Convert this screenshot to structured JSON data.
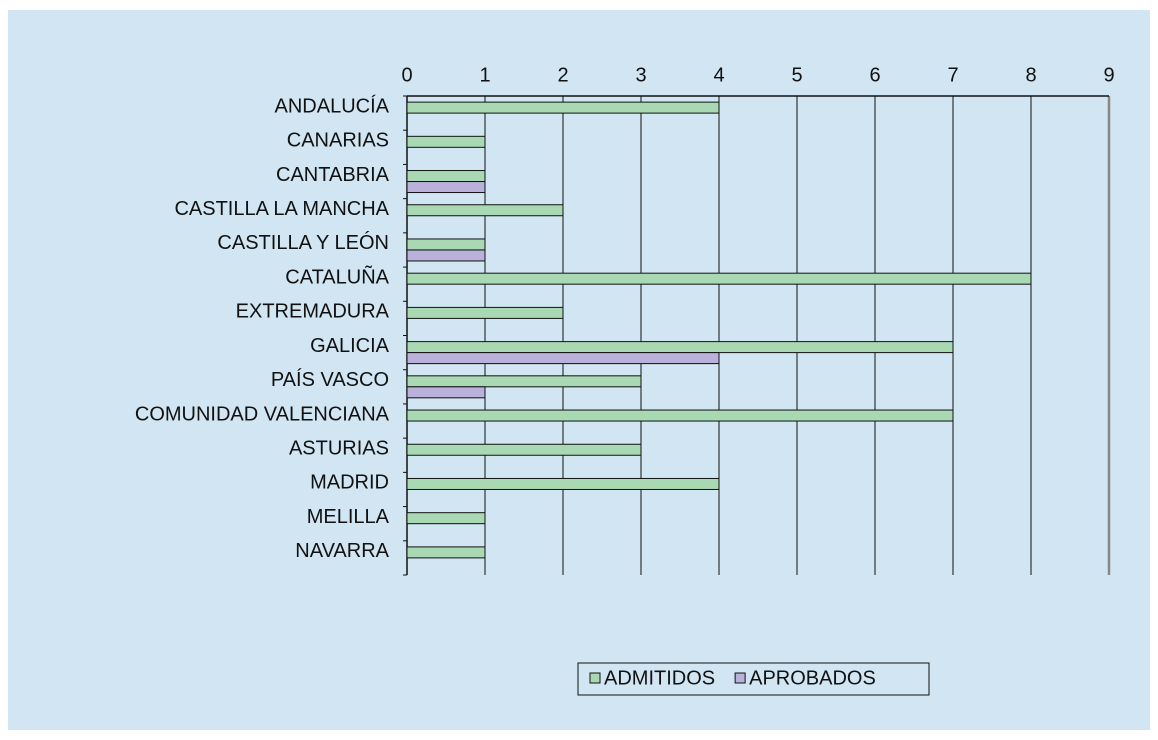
{
  "chart_data": {
    "type": "hbar",
    "categories": [
      "ANDALUCÍA",
      "CANARIAS",
      "CANTABRIA",
      "CASTILLA LA MANCHA",
      "CASTILLA Y LEÓN",
      "CATALUÑA",
      "EXTREMADURA",
      "GALICIA",
      "PAÍS VASCO",
      "COMUNIDAD VALENCIANA",
      "ASTURIAS",
      "MADRID",
      "MELILLA",
      "NAVARRA"
    ],
    "series": [
      {
        "name": "ADMITIDOS",
        "color": "#a9d9b3",
        "values": [
          4,
          1,
          1,
          2,
          1,
          8,
          2,
          7,
          3,
          7,
          3,
          4,
          1,
          1
        ]
      },
      {
        "name": "APROBADOS",
        "color": "#b9b1da",
        "values": [
          0,
          0,
          1,
          0,
          1,
          0,
          0,
          4,
          1,
          0,
          0,
          0,
          0,
          0
        ]
      }
    ],
    "xlim": [
      0,
      9
    ],
    "xticks": [
      0,
      1,
      2,
      3,
      4,
      5,
      6,
      7,
      8,
      9
    ],
    "grid": true,
    "legend": "bottom"
  }
}
